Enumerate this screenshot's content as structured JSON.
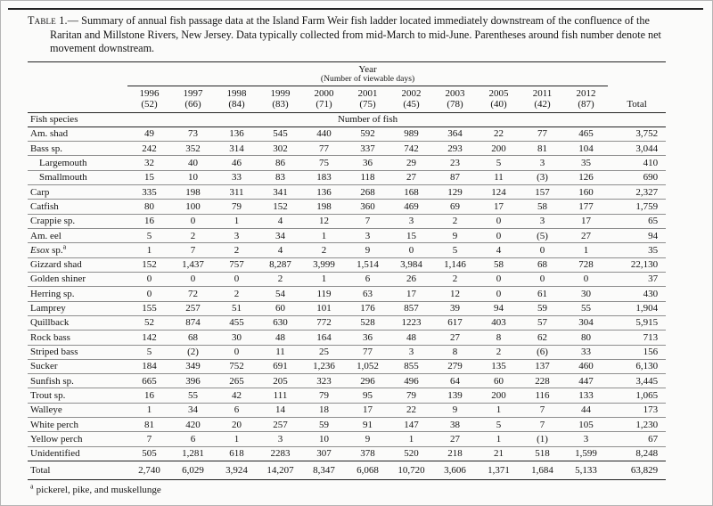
{
  "page": {
    "caption_label": "Table 1.—",
    "caption_text": "Summary of annual fish passage data at the Island Farm Weir fish ladder located immediately downstream of the confluence of the Raritan and Millstone Rivers, New Jersey.  Data typically collected from mid-March to mid-June.  Parentheses around fish number denote net movement downstream.",
    "footnote_marker": "a",
    "footnote_text": "pickerel, pike, and muskellunge"
  },
  "table": {
    "year_group_label": "Year",
    "year_group_sublabel": "(Number of viewable days)",
    "species_column_label": "Fish species",
    "count_group_label": "Number of fish",
    "total_column_label": "Total",
    "columns": [
      {
        "year": "1996",
        "days": "(52)"
      },
      {
        "year": "1997",
        "days": "(66)"
      },
      {
        "year": "1998",
        "days": "(84)"
      },
      {
        "year": "1999",
        "days": "(83)"
      },
      {
        "year": "2000",
        "days": "(71)"
      },
      {
        "year": "2001",
        "days": "(75)"
      },
      {
        "year": "2002",
        "days": "(45)"
      },
      {
        "year": "2003",
        "days": "(78)"
      },
      {
        "year": "2005",
        "days": "(40)"
      },
      {
        "year": "2011",
        "days": "(42)"
      },
      {
        "year": "2012",
        "days": "(87)"
      }
    ],
    "rows": [
      {
        "name": "Am. shad",
        "values": [
          "49",
          "73",
          "136",
          "545",
          "440",
          "592",
          "989",
          "364",
          "22",
          "77",
          "465"
        ],
        "total": "3,752"
      },
      {
        "name": "Bass sp.",
        "values": [
          "242",
          "352",
          "314",
          "302",
          "77",
          "337",
          "742",
          "293",
          "200",
          "81",
          "104"
        ],
        "total": "3,044"
      },
      {
        "name": "Largemouth",
        "indent": true,
        "values": [
          "32",
          "40",
          "46",
          "86",
          "75",
          "36",
          "29",
          "23",
          "5",
          "3",
          "35"
        ],
        "total": "410"
      },
      {
        "name": "Smallmouth",
        "indent": true,
        "values": [
          "15",
          "10",
          "33",
          "83",
          "183",
          "118",
          "27",
          "87",
          "11",
          "(3)",
          "126"
        ],
        "total": "690"
      },
      {
        "name": "Carp",
        "values": [
          "335",
          "198",
          "311",
          "341",
          "136",
          "268",
          "168",
          "129",
          "124",
          "157",
          "160"
        ],
        "total": "2,327"
      },
      {
        "name": "Catfish",
        "values": [
          "80",
          "100",
          "79",
          "152",
          "198",
          "360",
          "469",
          "69",
          "17",
          "58",
          "177"
        ],
        "total": "1,759"
      },
      {
        "name": "Crappie sp.",
        "values": [
          "16",
          "0",
          "1",
          "4",
          "12",
          "7",
          "3",
          "2",
          "0",
          "3",
          "17"
        ],
        "total": "65"
      },
      {
        "name": "Am. eel",
        "values": [
          "5",
          "2",
          "3",
          "34",
          "1",
          "3",
          "15",
          "9",
          "0",
          "(5)",
          "27"
        ],
        "total": "94"
      },
      {
        "name": "Esox sp.",
        "italic_word": "Esox",
        "sup": "a",
        "values": [
          "1",
          "7",
          "2",
          "4",
          "2",
          "9",
          "0",
          "5",
          "4",
          "0",
          "1"
        ],
        "total": "35"
      },
      {
        "name": "Gizzard shad",
        "values": [
          "152",
          "1,437",
          "757",
          "8,287",
          "3,999",
          "1,514",
          "3,984",
          "1,146",
          "58",
          "68",
          "728"
        ],
        "total": "22,130"
      },
      {
        "name": "Golden shiner",
        "values": [
          "0",
          "0",
          "0",
          "2",
          "1",
          "6",
          "26",
          "2",
          "0",
          "0",
          "0"
        ],
        "total": "37"
      },
      {
        "name": "Herring sp.",
        "values": [
          "0",
          "72",
          "2",
          "54",
          "119",
          "63",
          "17",
          "12",
          "0",
          "61",
          "30"
        ],
        "total": "430"
      },
      {
        "name": "Lamprey",
        "values": [
          "155",
          "257",
          "51",
          "60",
          "101",
          "176",
          "857",
          "39",
          "94",
          "59",
          "55"
        ],
        "total": "1,904"
      },
      {
        "name": "Quillback",
        "values": [
          "52",
          "874",
          "455",
          "630",
          "772",
          "528",
          "1223",
          "617",
          "403",
          "57",
          "304"
        ],
        "total": "5,915"
      },
      {
        "name": "Rock bass",
        "values": [
          "142",
          "68",
          "30",
          "48",
          "164",
          "36",
          "48",
          "27",
          "8",
          "62",
          "80"
        ],
        "total": "713"
      },
      {
        "name": "Striped bass",
        "values": [
          "5",
          "(2)",
          "0",
          "11",
          "25",
          "77",
          "3",
          "8",
          "2",
          "(6)",
          "33"
        ],
        "total": "156"
      },
      {
        "name": "Sucker",
        "values": [
          "184",
          "349",
          "752",
          "691",
          "1,236",
          "1,052",
          "855",
          "279",
          "135",
          "137",
          "460"
        ],
        "total": "6,130"
      },
      {
        "name": "Sunfish sp.",
        "values": [
          "665",
          "396",
          "265",
          "205",
          "323",
          "296",
          "496",
          "64",
          "60",
          "228",
          "447"
        ],
        "total": "3,445"
      },
      {
        "name": "Trout sp.",
        "values": [
          "16",
          "55",
          "42",
          "111",
          "79",
          "95",
          "79",
          "139",
          "200",
          "116",
          "133"
        ],
        "total": "1,065"
      },
      {
        "name": "Walleye",
        "values": [
          "1",
          "34",
          "6",
          "14",
          "18",
          "17",
          "22",
          "9",
          "1",
          "7",
          "44"
        ],
        "total": "173"
      },
      {
        "name": "White perch",
        "values": [
          "81",
          "420",
          "20",
          "257",
          "59",
          "91",
          "147",
          "38",
          "5",
          "7",
          "105"
        ],
        "total": "1,230"
      },
      {
        "name": "Yellow perch",
        "values": [
          "7",
          "6",
          "1",
          "3",
          "10",
          "9",
          "1",
          "27",
          "1",
          "(1)",
          "3"
        ],
        "total": "67"
      },
      {
        "name": "Unidentified",
        "values": [
          "505",
          "1,281",
          "618",
          "2283",
          "307",
          "378",
          "520",
          "218",
          "21",
          "518",
          "1,599"
        ],
        "total": "8,248"
      }
    ],
    "total_row": {
      "label": "Total",
      "values": [
        "2,740",
        "6,029",
        "3,924",
        "14,207",
        "8,347",
        "6,068",
        "10,720",
        "3,606",
        "1,371",
        "1,684",
        "5,133"
      ],
      "total": "63,829"
    }
  }
}
